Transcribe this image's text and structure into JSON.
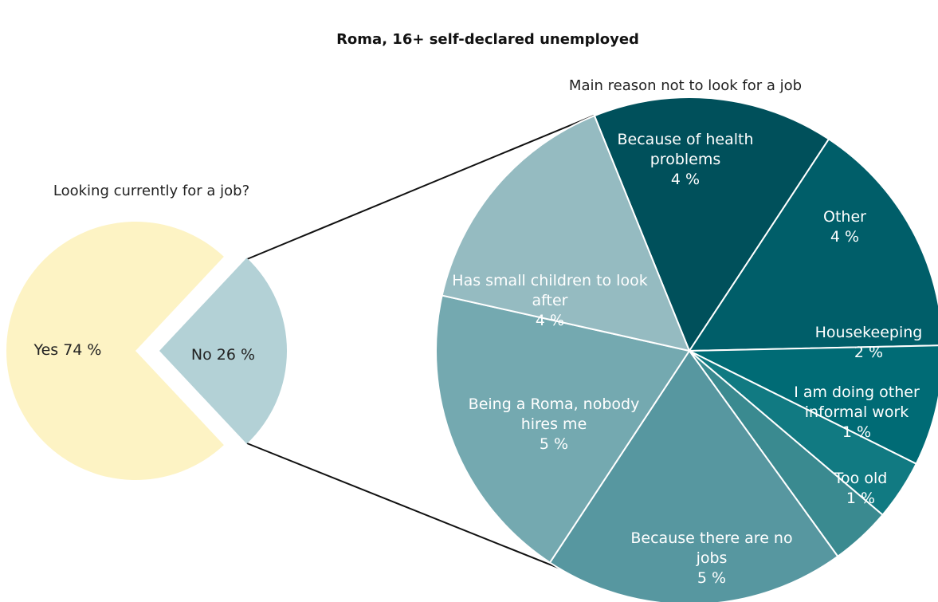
{
  "title": "Roma, 16+ self-declared unemployed",
  "chart_data": [
    {
      "type": "pie",
      "title": "Looking currently for a job?",
      "categories": [
        "Yes",
        "No"
      ],
      "values": [
        74,
        26
      ],
      "value_labels": [
        "74 %",
        "26 %"
      ],
      "colors": [
        "#fdf3c4",
        "#b3d1d6"
      ]
    },
    {
      "type": "pie",
      "title": "Main reason not to look for a job",
      "categories": [
        "Because of health problems",
        "Other",
        "Housekeeping",
        "I am doing other informal work",
        "Too old",
        "Because there are no jobs",
        "Being a Roma, nobody hires me",
        "Has small children to look after"
      ],
      "values": [
        4,
        4,
        2,
        1,
        1,
        5,
        5,
        4
      ],
      "value_labels": [
        "4 %",
        "4 %",
        "2 %",
        "1 %",
        "1 %",
        "5 %",
        "5 %",
        "4 %"
      ],
      "colors": [
        "#00505b",
        "#005e69",
        "#006b75",
        "#117a82",
        "#3a8a90",
        "#5797a0",
        "#74a9b0",
        "#95bbc1"
      ]
    }
  ]
}
